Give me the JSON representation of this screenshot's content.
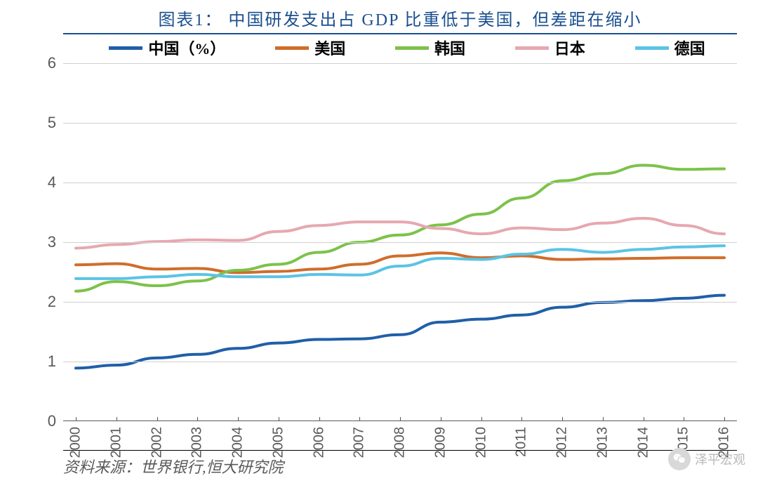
{
  "title": "图表1：  中国研发支出占 GDP 比重低于美国，但差距在缩小",
  "source": "资料来源：世界银行,恒大研究院",
  "watermark": "泽平宏观",
  "chart": {
    "type": "line",
    "background_color": "#ffffff",
    "grid_color": "#d0d0d0",
    "axis_color": "#595959",
    "title_color": "#1a4f8f",
    "title_fontsize": 24,
    "label_fontsize": 22,
    "x_labels": [
      "2000",
      "2001",
      "2002",
      "2003",
      "2004",
      "2005",
      "2006",
      "2007",
      "2008",
      "2009",
      "2010",
      "2011",
      "2012",
      "2013",
      "2014",
      "2015",
      "2016"
    ],
    "ylim": [
      0,
      6
    ],
    "ytick_step": 1,
    "line_width": 4,
    "series": [
      {
        "name": "中国（%）",
        "color": "#1f5fa8",
        "values": [
          0.89,
          0.94,
          1.06,
          1.12,
          1.22,
          1.31,
          1.37,
          1.38,
          1.45,
          1.66,
          1.71,
          1.78,
          1.91,
          1.99,
          2.02,
          2.06,
          2.11
        ]
      },
      {
        "name": "美国",
        "color": "#d06d2a",
        "values": [
          2.62,
          2.64,
          2.55,
          2.56,
          2.49,
          2.51,
          2.55,
          2.63,
          2.77,
          2.82,
          2.74,
          2.77,
          2.71,
          2.72,
          2.73,
          2.74,
          2.74
        ]
      },
      {
        "name": "韩国",
        "color": "#7cc24a",
        "values": [
          2.18,
          2.34,
          2.27,
          2.35,
          2.53,
          2.63,
          2.83,
          3.0,
          3.12,
          3.29,
          3.47,
          3.74,
          4.03,
          4.15,
          4.29,
          4.22,
          4.23
        ]
      },
      {
        "name": "日本",
        "color": "#e6a8b0",
        "values": [
          2.9,
          2.96,
          3.01,
          3.04,
          3.03,
          3.18,
          3.28,
          3.34,
          3.34,
          3.23,
          3.14,
          3.24,
          3.21,
          3.32,
          3.4,
          3.28,
          3.14
        ]
      },
      {
        "name": "德国",
        "color": "#5bc3e6",
        "values": [
          2.39,
          2.39,
          2.42,
          2.46,
          2.42,
          2.42,
          2.46,
          2.45,
          2.6,
          2.73,
          2.71,
          2.8,
          2.88,
          2.83,
          2.88,
          2.92,
          2.94
        ]
      }
    ]
  }
}
